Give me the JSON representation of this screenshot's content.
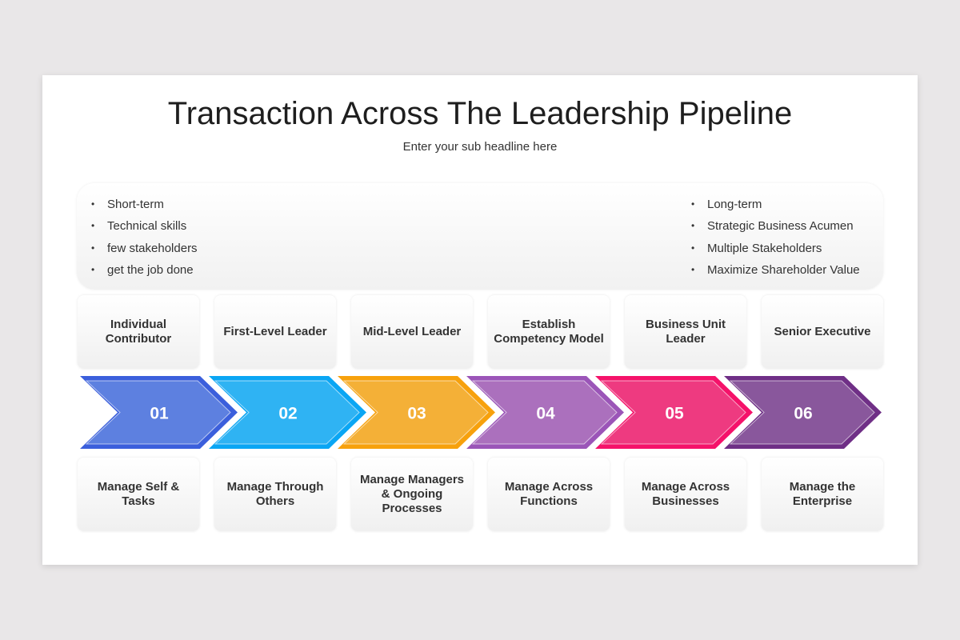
{
  "title": "Transaction Across The Leadership Pipeline",
  "subtitle": "Enter your sub headline here",
  "left_points": [
    "Short-term",
    "Technical skills",
    "few stakeholders",
    "get the job done"
  ],
  "right_points": [
    "Long-term",
    "Strategic Business Acumen",
    "Multiple Stakeholders",
    "Maximize Shareholder Value"
  ],
  "stages": [
    {
      "number": "01",
      "role": "Individual Contributor",
      "focus": "Manage Self & Tasks",
      "color": "#3b5fdc",
      "fill": "#5d80e0"
    },
    {
      "number": "02",
      "role": "First-Level Leader",
      "focus": "Manage Through Others",
      "color": "#0aa6f4",
      "fill": "#2fb3f3"
    },
    {
      "number": "03",
      "role": "Mid-Level Leader",
      "focus": "Manage Managers & Ongoing Processes",
      "color": "#f7a10c",
      "fill": "#f4b037"
    },
    {
      "number": "04",
      "role": "Establish Competency Model",
      "focus": "Manage Across Functions",
      "color": "#9b55b8",
      "fill": "#ab70bd"
    },
    {
      "number": "05",
      "role": "Business Unit Leader",
      "focus": "Manage Across Businesses",
      "color": "#f5126a",
      "fill": "#ee3a80"
    },
    {
      "number": "06",
      "role": "Senior Executive",
      "focus": "Manage the Enterprise",
      "color": "#6f2f86",
      "fill": "#89579c"
    }
  ]
}
